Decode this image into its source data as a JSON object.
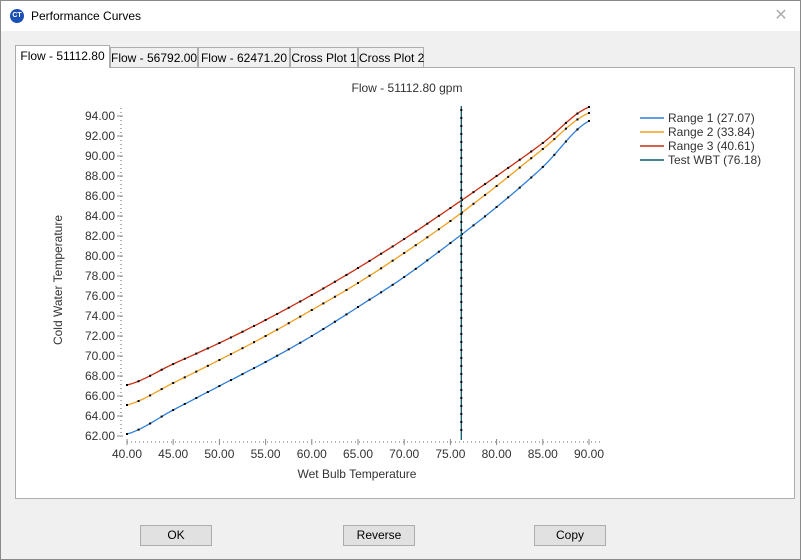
{
  "window": {
    "title": "Performance Curves"
  },
  "tabs": [
    {
      "label": "Flow - 51112.80",
      "active": true
    },
    {
      "label": "Flow - 56792.00",
      "active": false
    },
    {
      "label": "Flow - 62471.20",
      "active": false
    },
    {
      "label": "Cross Plot 1",
      "active": false
    },
    {
      "label": "Cross Plot 2",
      "active": false
    }
  ],
  "buttons": {
    "ok": "OK",
    "reverse": "Reverse",
    "copy": "Copy"
  },
  "colors": {
    "range1": "#2f7fd8",
    "range2": "#f0a020",
    "range3": "#c82d10",
    "test_wbt": "#0a5a6e",
    "marker": "#000000"
  },
  "chart_data": {
    "type": "line",
    "title": "Flow - 51112.80 gpm",
    "xlabel": "Wet Bulb Temperature",
    "ylabel": "Cold Water Temperature",
    "xlim": [
      40,
      90
    ],
    "ylim": [
      62,
      94
    ],
    "xticks": [
      "40.00",
      "45.00",
      "50.00",
      "55.00",
      "60.00",
      "65.00",
      "70.00",
      "75.00",
      "80.00",
      "85.00",
      "90.00"
    ],
    "yticks": [
      "94.00",
      "92.00",
      "90.00",
      "88.00",
      "86.00",
      "84.00",
      "82.00",
      "80.00",
      "78.00",
      "76.00",
      "74.00",
      "72.00",
      "70.00",
      "68.00",
      "66.00",
      "64.00",
      "62.00"
    ],
    "legend_position": "right",
    "grid": false,
    "x": [
      40,
      45,
      50,
      55,
      60,
      65,
      70,
      75,
      80,
      85,
      90
    ],
    "series": [
      {
        "name": "Range 1 (27.07)",
        "values": [
          62.2,
          64.6,
          67.0,
          69.4,
          72.0,
          74.9,
          77.9,
          81.3,
          84.9,
          88.9,
          93.5
        ]
      },
      {
        "name": "Range 2 (33.84)",
        "values": [
          65.1,
          67.3,
          69.6,
          72.0,
          74.6,
          77.3,
          80.3,
          83.5,
          87.0,
          90.7,
          94.3
        ]
      },
      {
        "name": "Range 3 (40.61)",
        "values": [
          67.1,
          69.2,
          71.3,
          73.6,
          76.1,
          78.8,
          81.7,
          84.8,
          88.0,
          91.3,
          94.9
        ]
      }
    ],
    "vertical_line": {
      "name": "Test WBT (76.18)",
      "x": 76.18
    }
  }
}
